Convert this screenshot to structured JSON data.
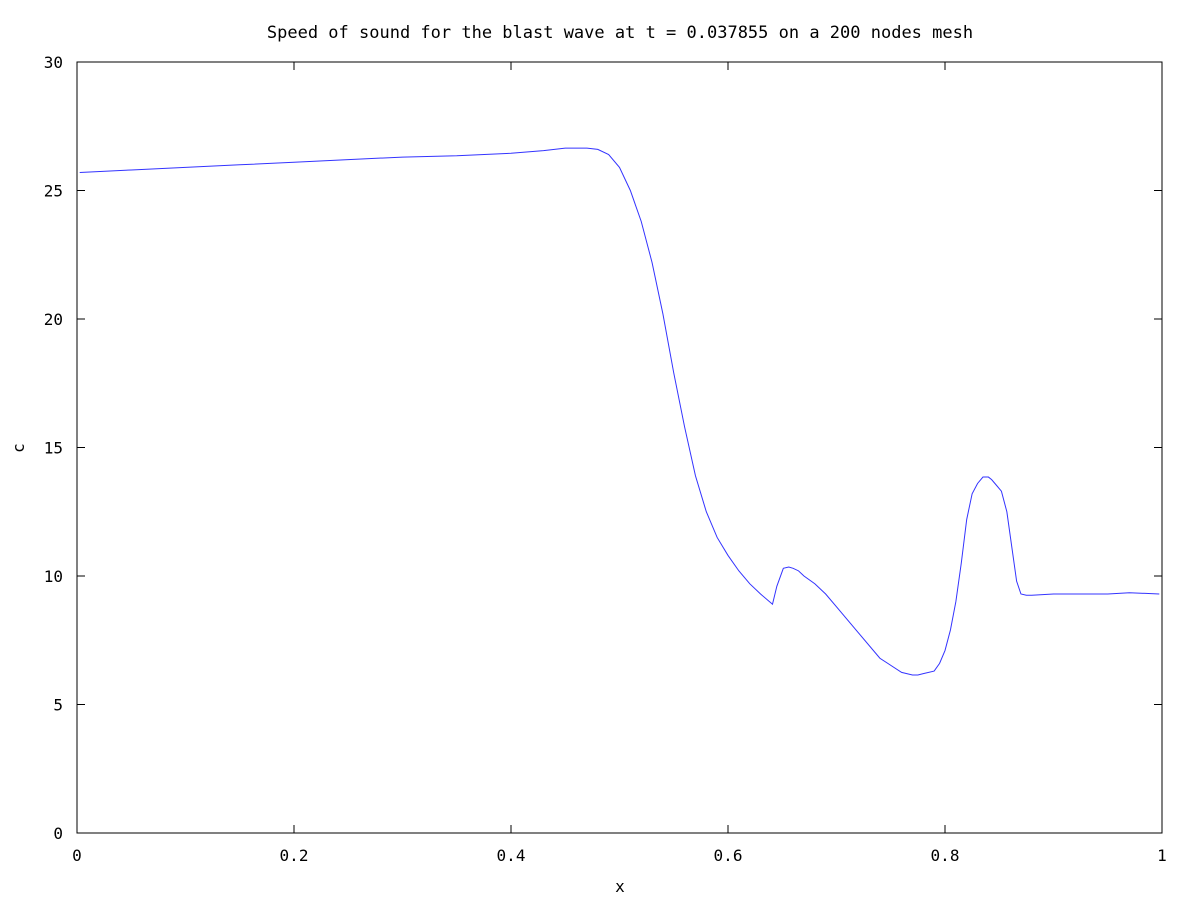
{
  "chart_data": {
    "type": "line",
    "title": "Speed of sound for the blast wave at t = 0.037855 on a 200 nodes mesh",
    "xlabel": "x",
    "ylabel": "c",
    "xlim": [
      0,
      1
    ],
    "ylim": [
      0,
      30
    ],
    "x_ticks": [
      0,
      0.2,
      0.4,
      0.6,
      0.8,
      1
    ],
    "x_tick_labels": [
      "0",
      "0.2",
      "0.4",
      "0.6",
      "0.8",
      "1"
    ],
    "y_ticks": [
      0,
      5,
      10,
      15,
      20,
      25,
      30
    ],
    "y_tick_labels": [
      "0",
      "5",
      "10",
      "15",
      "20",
      "25",
      "30"
    ],
    "grid": false,
    "line_color": "#3333ff",
    "series": [
      {
        "x": [
          0.0025,
          0.05,
          0.1,
          0.15,
          0.2,
          0.25,
          0.3,
          0.35,
          0.4,
          0.43,
          0.45,
          0.47,
          0.48,
          0.49,
          0.5,
          0.51,
          0.52,
          0.53,
          0.54,
          0.55,
          0.56,
          0.57,
          0.58,
          0.59,
          0.6,
          0.61,
          0.62,
          0.63,
          0.641,
          0.645,
          0.651,
          0.656,
          0.66,
          0.665,
          0.67,
          0.68,
          0.69,
          0.7,
          0.72,
          0.74,
          0.76,
          0.77,
          0.775,
          0.78,
          0.79,
          0.795,
          0.8,
          0.805,
          0.81,
          0.815,
          0.82,
          0.825,
          0.83,
          0.835,
          0.84,
          0.843,
          0.847,
          0.852,
          0.857,
          0.862,
          0.866,
          0.87,
          0.875,
          0.88,
          0.9,
          0.95,
          0.97,
          0.9975
        ],
        "y": [
          25.7,
          25.8,
          25.9,
          26.0,
          26.1,
          26.2,
          26.3,
          26.35,
          26.45,
          26.55,
          26.65,
          26.65,
          26.6,
          26.4,
          25.9,
          25.0,
          23.8,
          22.2,
          20.2,
          17.9,
          15.8,
          13.9,
          12.5,
          11.5,
          10.8,
          10.2,
          9.7,
          9.3,
          8.9,
          9.6,
          10.3,
          10.35,
          10.3,
          10.2,
          10.0,
          9.7,
          9.3,
          8.8,
          7.8,
          6.8,
          6.25,
          6.15,
          6.15,
          6.2,
          6.3,
          6.6,
          7.1,
          7.9,
          9.0,
          10.5,
          12.2,
          13.2,
          13.6,
          13.85,
          13.85,
          13.75,
          13.55,
          13.3,
          12.5,
          11.0,
          9.8,
          9.3,
          9.25,
          9.25,
          9.3,
          9.3,
          9.35,
          9.3
        ]
      }
    ]
  }
}
